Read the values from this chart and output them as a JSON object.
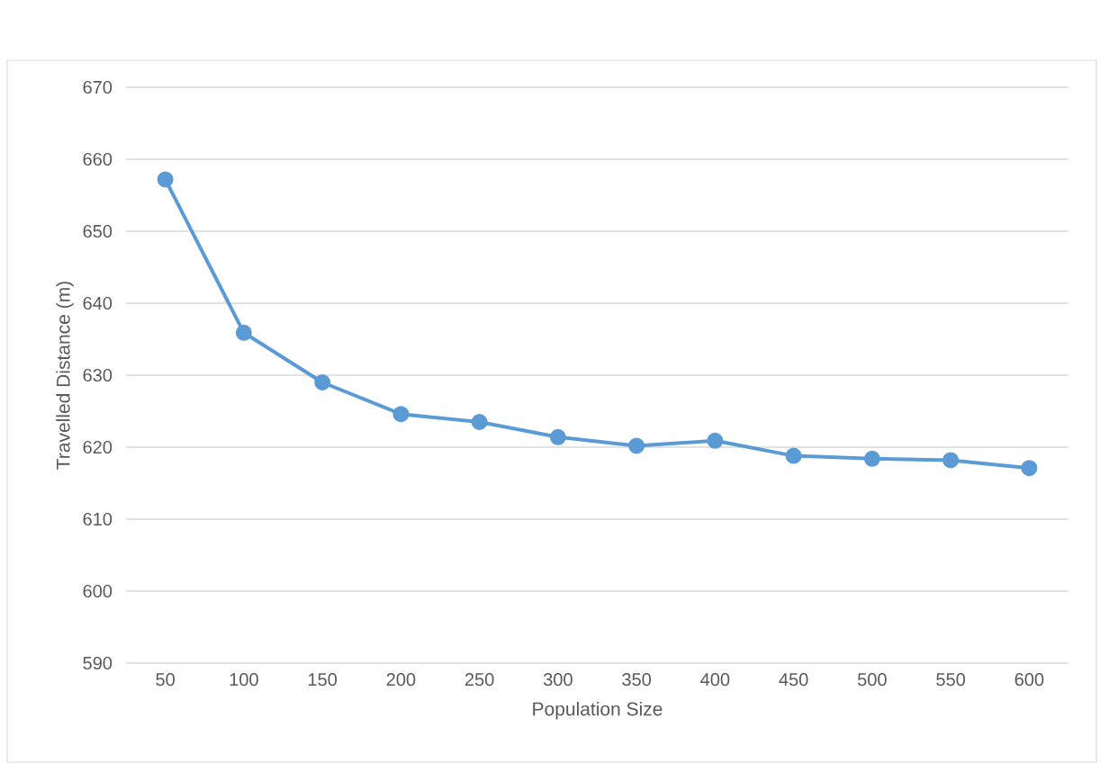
{
  "chart_data": {
    "type": "line",
    "xlabel": "Population Size",
    "ylabel": "Travelled Distance (m)",
    "categories": [
      "50",
      "100",
      "150",
      "200",
      "250",
      "300",
      "350",
      "400",
      "450",
      "500",
      "550",
      "600"
    ],
    "values": [
      657.2,
      635.9,
      629,
      624.6,
      623.5,
      621.4,
      620.2,
      620.9,
      618.8,
      618.4,
      618.2,
      617.1
    ],
    "color": "#5b9bd5",
    "ylim": [
      590,
      670
    ],
    "yticks": [
      590,
      600,
      610,
      620,
      630,
      640,
      650,
      660,
      670
    ],
    "grid": "y",
    "marker": "circle",
    "line_style": "solid"
  }
}
